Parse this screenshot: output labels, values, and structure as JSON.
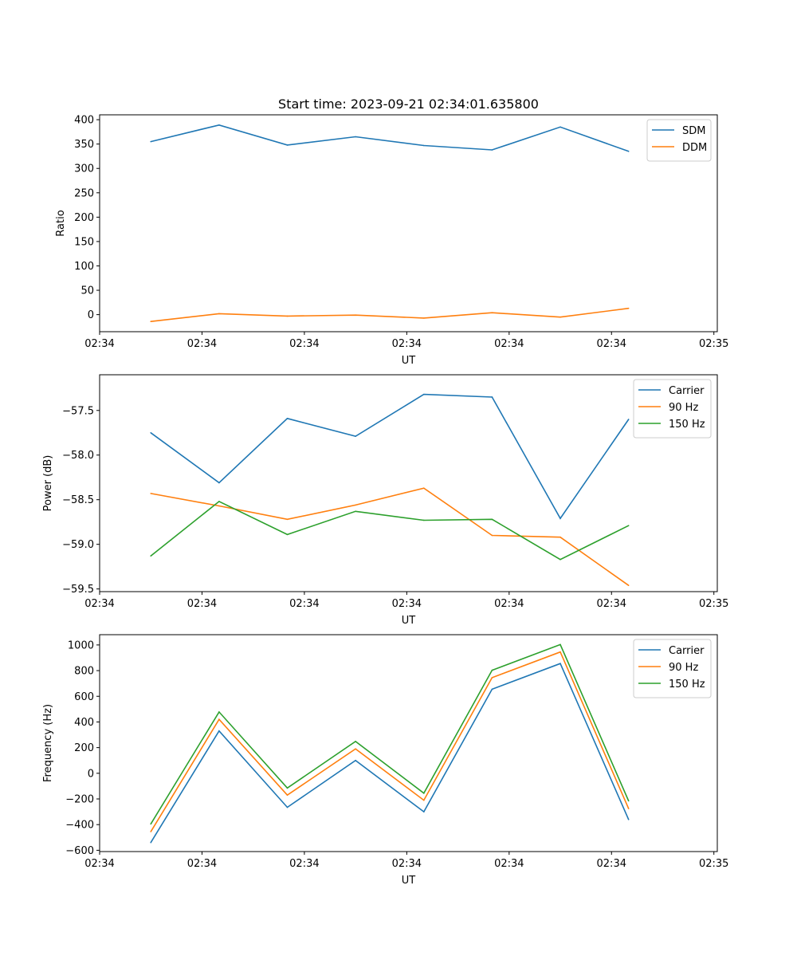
{
  "colors": {
    "blue": "#1f77b4",
    "orange": "#ff7f0e",
    "green": "#2ca02c"
  },
  "chart_data": [
    {
      "type": "line",
      "title": "Start time: 2023-09-21 02:34:01.635800",
      "xlabel": "UT",
      "ylabel": "Ratio",
      "x": [
        0,
        1,
        2,
        3,
        4,
        5,
        6,
        7
      ],
      "xlim": [
        -0.75,
        8.3
      ],
      "xticks": [
        -0.75,
        0.75,
        2.25,
        3.75,
        5.25,
        6.75,
        8.25
      ],
      "xtick_labels": [
        "02:34",
        "02:34",
        "02:34",
        "02:34",
        "02:34",
        "02:34",
        "02:35"
      ],
      "ylim": [
        -35,
        410
      ],
      "yticks": [
        0,
        50,
        100,
        150,
        200,
        250,
        300,
        350,
        400
      ],
      "ytick_labels": [
        "0",
        "50",
        "100",
        "150",
        "200",
        "250",
        "300",
        "350",
        "400"
      ],
      "legend_position": "top-right",
      "series": [
        {
          "name": "SDM",
          "color": "#1f77b4",
          "values": [
            355,
            389,
            348,
            365,
            347,
            338,
            385,
            335
          ]
        },
        {
          "name": "DDM",
          "color": "#ff7f0e",
          "values": [
            -14,
            2,
            -3,
            -1,
            -7,
            4,
            -5,
            13
          ]
        }
      ]
    },
    {
      "type": "line",
      "title": "",
      "xlabel": "UT",
      "ylabel": "Power (dB)",
      "x": [
        0,
        1,
        2,
        3,
        4,
        5,
        6,
        7
      ],
      "xlim": [
        -0.75,
        8.3
      ],
      "xticks": [
        -0.75,
        0.75,
        2.25,
        3.75,
        5.25,
        6.75,
        8.25
      ],
      "xtick_labels": [
        "02:34",
        "02:34",
        "02:34",
        "02:34",
        "02:34",
        "02:34",
        "02:35"
      ],
      "ylim": [
        -59.53,
        -57.1
      ],
      "yticks": [
        -59.5,
        -59.0,
        -58.5,
        -58.0,
        -57.5
      ],
      "ytick_labels": [
        "−59.5",
        "−59.0",
        "−58.5",
        "−58.0",
        "−57.5"
      ],
      "legend_position": "top-right",
      "series": [
        {
          "name": "Carrier",
          "color": "#1f77b4",
          "values": [
            -57.75,
            -58.31,
            -57.59,
            -57.79,
            -57.32,
            -57.35,
            -58.71,
            -57.6
          ]
        },
        {
          "name": "90 Hz",
          "color": "#ff7f0e",
          "values": [
            -58.43,
            -58.57,
            -58.72,
            -58.56,
            -58.37,
            -58.9,
            -58.92,
            -59.46
          ]
        },
        {
          "name": "150 Hz",
          "color": "#2ca02c",
          "values": [
            -59.13,
            -58.52,
            -58.89,
            -58.63,
            -58.73,
            -58.72,
            -59.17,
            -58.79
          ]
        }
      ]
    },
    {
      "type": "line",
      "title": "",
      "xlabel": "UT",
      "ylabel": "Frequency (Hz)",
      "x": [
        0,
        1,
        2,
        3,
        4,
        5,
        6,
        7
      ],
      "xlim": [
        -0.75,
        8.3
      ],
      "xticks": [
        -0.75,
        0.75,
        2.25,
        3.75,
        5.25,
        6.75,
        8.25
      ],
      "xtick_labels": [
        "02:34",
        "02:34",
        "02:34",
        "02:34",
        "02:34",
        "02:34",
        "02:35"
      ],
      "ylim": [
        -610,
        1080
      ],
      "yticks": [
        -600,
        -400,
        -200,
        0,
        200,
        400,
        600,
        800,
        1000
      ],
      "ytick_labels": [
        "−600",
        "−400",
        "−200",
        "0",
        "200",
        "400",
        "600",
        "800",
        "1000"
      ],
      "legend_position": "top-right",
      "series": [
        {
          "name": "Carrier",
          "color": "#1f77b4",
          "values": [
            -540,
            330,
            -265,
            100,
            -300,
            655,
            855,
            -360
          ]
        },
        {
          "name": "90 Hz",
          "color": "#ff7f0e",
          "values": [
            -455,
            420,
            -170,
            190,
            -210,
            745,
            945,
            -275
          ]
        },
        {
          "name": "150 Hz",
          "color": "#2ca02c",
          "values": [
            -395,
            478,
            -115,
            248,
            -155,
            803,
            1003,
            -215
          ]
        }
      ]
    }
  ]
}
